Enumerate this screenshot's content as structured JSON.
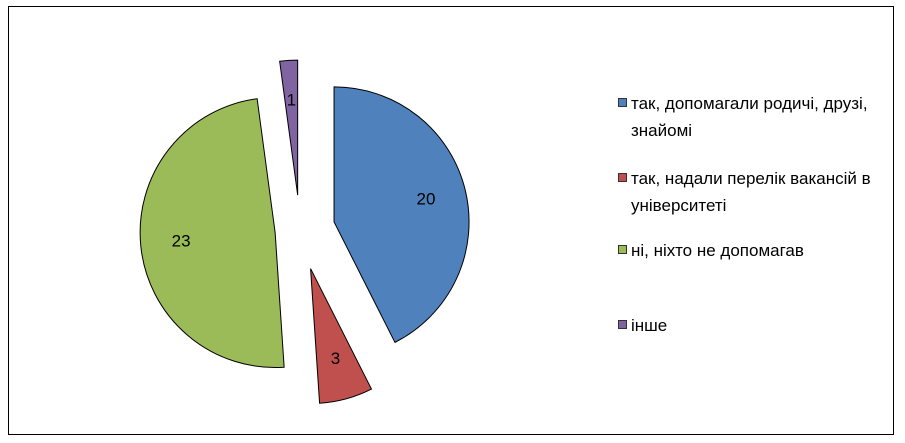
{
  "chart_data": {
    "type": "pie",
    "categories": [
      "так, допомагали родичі, друзі, знайомі",
      "так, надали перелік вакансій в університеті",
      "ні, ніхто не допомагав",
      "інше"
    ],
    "values": [
      20,
      3,
      23,
      1
    ],
    "colors": [
      "#4f81bd",
      "#c0504d",
      "#9bbb59",
      "#8064a2"
    ],
    "legend": "right"
  }
}
